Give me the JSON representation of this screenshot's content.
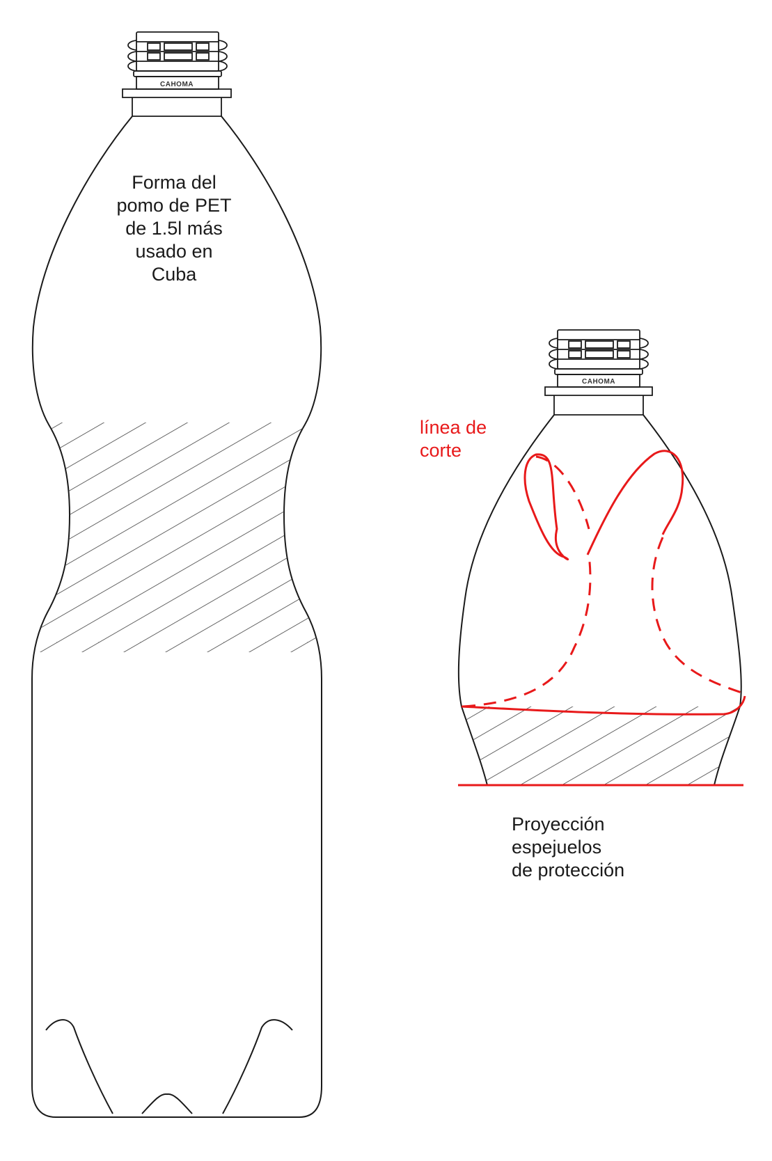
{
  "labels": {
    "bottle_shape": [
      "Forma del",
      "pomo de PET",
      "de 1.5l más",
      "usado en",
      "Cuba"
    ],
    "cut_line": [
      "línea de",
      "corte"
    ],
    "projection": [
      "Proyección",
      "espejuelos",
      "de protección"
    ]
  },
  "brand_text": "CAHOMA",
  "colors": {
    "outline": "#1a1a1a",
    "cut_line": "#e8191a",
    "hatch": "#333333"
  }
}
